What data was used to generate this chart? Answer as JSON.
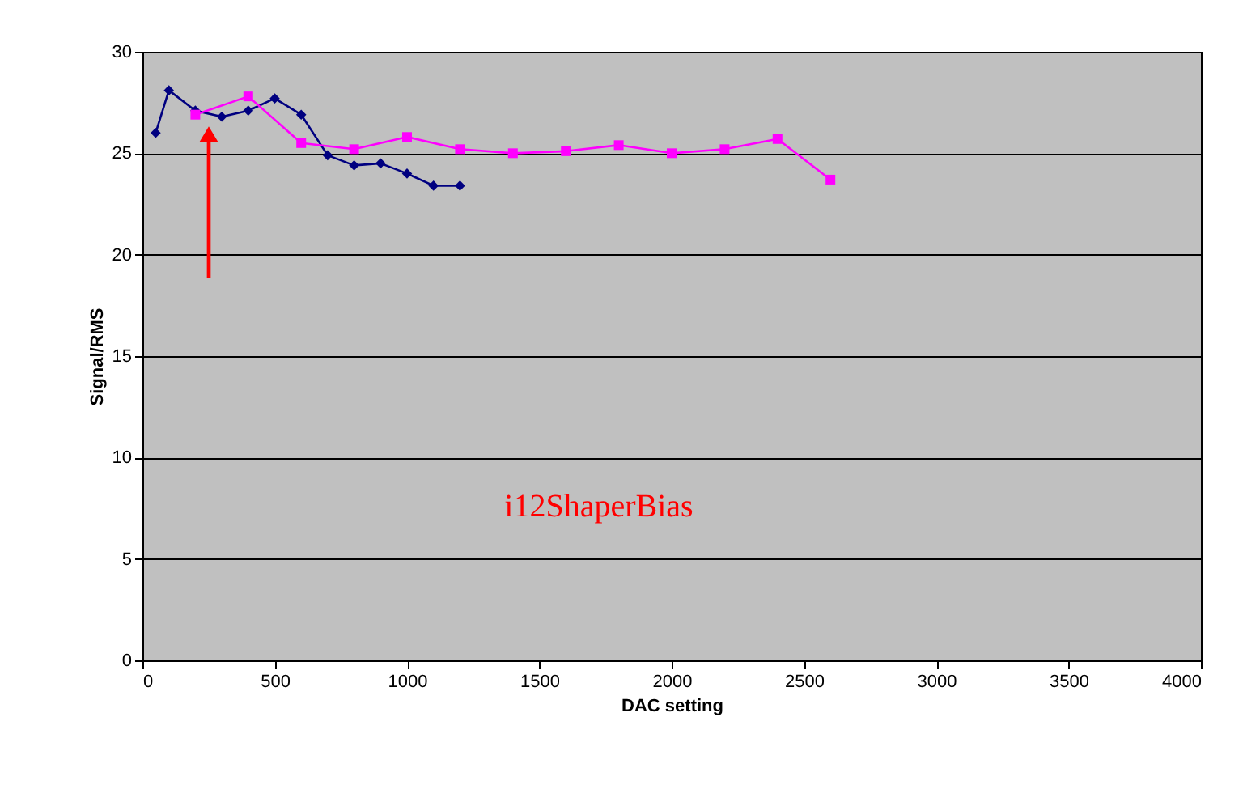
{
  "chart_data": {
    "type": "line",
    "xlabel": "DAC setting",
    "ylabel": "Signal/RMS",
    "xlim": [
      0,
      4000
    ],
    "xticks": [
      0,
      500,
      1000,
      1500,
      2000,
      2500,
      3000,
      3500,
      4000
    ],
    "ylim": [
      0,
      30
    ],
    "yticks": [
      0,
      5,
      10,
      15,
      20,
      25,
      30
    ],
    "grid": "y",
    "legend": false,
    "annotations": [
      "i12ShaperBias"
    ],
    "series": [
      {
        "color": "#000080",
        "marker": "diamond",
        "x": [
          50,
          100,
          200,
          300,
          400,
          500,
          600,
          700,
          800,
          900,
          1000,
          1100,
          1200
        ],
        "values": [
          26.0,
          28.1,
          27.1,
          26.8,
          27.1,
          27.7,
          26.9,
          24.9,
          24.4,
          24.5,
          24.0,
          23.4,
          23.4
        ]
      },
      {
        "color": "#ff00ff",
        "marker": "square",
        "x": [
          200,
          400,
          600,
          800,
          1000,
          1200,
          1400,
          1600,
          1800,
          2000,
          2200,
          2400,
          2600
        ],
        "values": [
          26.9,
          27.8,
          25.5,
          25.2,
          25.8,
          25.2,
          25.0,
          25.1,
          25.4,
          25.0,
          25.2,
          25.7,
          23.7
        ]
      }
    ]
  }
}
